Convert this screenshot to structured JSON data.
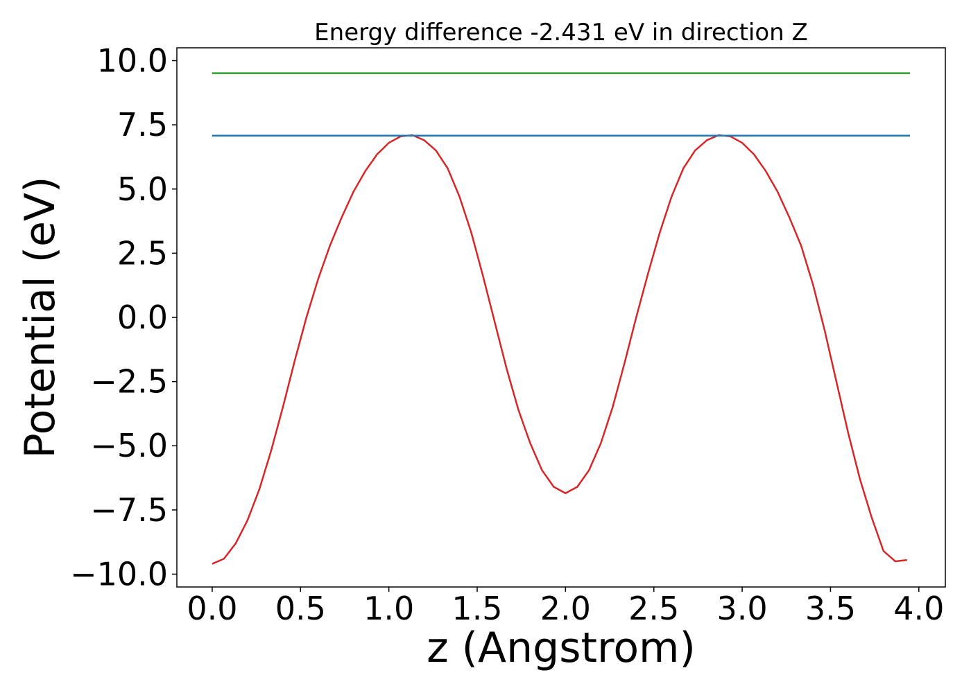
{
  "chart_data": {
    "type": "line",
    "title": "Energy difference -2.431 eV in direction Z",
    "xlabel": "z (Angstrom)",
    "ylabel": "Potential (eV)",
    "xlim": [
      -0.2,
      4.15
    ],
    "ylim": [
      -10.5,
      10.5
    ],
    "xticks": [
      0.0,
      0.5,
      1.0,
      1.5,
      2.0,
      2.5,
      3.0,
      3.5,
      4.0
    ],
    "xtick_labels": [
      "0.0",
      "0.5",
      "1.0",
      "1.5",
      "2.0",
      "2.5",
      "3.0",
      "3.5",
      "4.0"
    ],
    "yticks": [
      10.0,
      7.5,
      5.0,
      2.5,
      0.0,
      -2.5,
      -5.0,
      -7.5,
      -10.0
    ],
    "ytick_labels": [
      "10.0",
      "7.5",
      "5.0",
      "2.5",
      "0.0",
      "−2.5",
      "−5.0",
      "−7.5",
      "−10.0"
    ],
    "grid": false,
    "legend": "none",
    "series": [
      {
        "color": "#d62728",
        "x": [
          0.0,
          0.0667,
          0.1333,
          0.2,
          0.2667,
          0.3333,
          0.4,
          0.4667,
          0.5333,
          0.6,
          0.6667,
          0.7333,
          0.8,
          0.8667,
          0.9333,
          1.0,
          1.0667,
          1.1333,
          1.2,
          1.2667,
          1.3333,
          1.4,
          1.4667,
          1.5333,
          1.6,
          1.6667,
          1.7333,
          1.8,
          1.8667,
          1.9333,
          2.0,
          2.0667,
          2.1333,
          2.2,
          2.2667,
          2.3333,
          2.4,
          2.4667,
          2.5333,
          2.6,
          2.6667,
          2.7333,
          2.8,
          2.8667,
          2.9333,
          3.0,
          3.0667,
          3.1333,
          3.2,
          3.2667,
          3.3333,
          3.4,
          3.4667,
          3.5333,
          3.6,
          3.6667,
          3.7333,
          3.8,
          3.8667,
          3.9333
        ],
        "y": [
          -9.6,
          -9.4,
          -8.8,
          -7.9,
          -6.7,
          -5.2,
          -3.5,
          -1.7,
          0.0,
          1.5,
          2.8,
          3.9,
          4.9,
          5.7,
          6.35,
          6.8,
          7.05,
          7.1,
          6.9,
          6.5,
          5.8,
          4.7,
          3.3,
          1.6,
          -0.2,
          -2.0,
          -3.6,
          -4.9,
          -5.95,
          -6.6,
          -6.85,
          -6.6,
          -5.95,
          -4.9,
          -3.5,
          -1.8,
          0.0,
          1.7,
          3.3,
          4.7,
          5.8,
          6.5,
          6.9,
          7.1,
          7.05,
          6.8,
          6.35,
          5.7,
          4.9,
          3.9,
          2.8,
          1.3,
          -0.5,
          -2.5,
          -4.5,
          -6.3,
          -7.8,
          -9.1,
          -9.5,
          -9.45
        ]
      },
      {
        "color": "#1f77b4",
        "x": [
          0.0,
          3.95
        ],
        "y": [
          7.08,
          7.08
        ]
      },
      {
        "color": "#2ca02c",
        "x": [
          0.0,
          3.95
        ],
        "y": [
          9.51,
          9.51
        ]
      }
    ]
  }
}
